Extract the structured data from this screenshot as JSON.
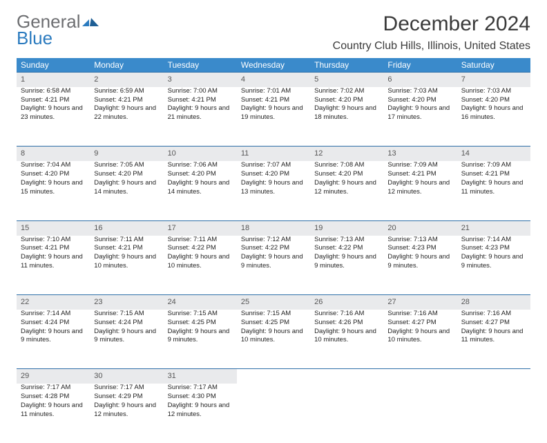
{
  "logo": {
    "word1": "General",
    "word2": "Blue"
  },
  "header": {
    "month_title": "December 2024",
    "location": "Country Club Hills, Illinois, United States"
  },
  "colors": {
    "header_bg": "#3a8acb",
    "daynum_bg": "#e9eaec",
    "row_border": "#2e6fa8",
    "logo_gray": "#6d6e71",
    "logo_blue": "#2b7bbf"
  },
  "weekdays": [
    "Sunday",
    "Monday",
    "Tuesday",
    "Wednesday",
    "Thursday",
    "Friday",
    "Saturday"
  ],
  "weeks": [
    {
      "nums": [
        "1",
        "2",
        "3",
        "4",
        "5",
        "6",
        "7"
      ],
      "cells": [
        {
          "sr": "6:58 AM",
          "ss": "4:21 PM",
          "dl": "9 hours and 23 minutes."
        },
        {
          "sr": "6:59 AM",
          "ss": "4:21 PM",
          "dl": "9 hours and 22 minutes."
        },
        {
          "sr": "7:00 AM",
          "ss": "4:21 PM",
          "dl": "9 hours and 21 minutes."
        },
        {
          "sr": "7:01 AM",
          "ss": "4:21 PM",
          "dl": "9 hours and 19 minutes."
        },
        {
          "sr": "7:02 AM",
          "ss": "4:20 PM",
          "dl": "9 hours and 18 minutes."
        },
        {
          "sr": "7:03 AM",
          "ss": "4:20 PM",
          "dl": "9 hours and 17 minutes."
        },
        {
          "sr": "7:03 AM",
          "ss": "4:20 PM",
          "dl": "9 hours and 16 minutes."
        }
      ]
    },
    {
      "nums": [
        "8",
        "9",
        "10",
        "11",
        "12",
        "13",
        "14"
      ],
      "cells": [
        {
          "sr": "7:04 AM",
          "ss": "4:20 PM",
          "dl": "9 hours and 15 minutes."
        },
        {
          "sr": "7:05 AM",
          "ss": "4:20 PM",
          "dl": "9 hours and 14 minutes."
        },
        {
          "sr": "7:06 AM",
          "ss": "4:20 PM",
          "dl": "9 hours and 14 minutes."
        },
        {
          "sr": "7:07 AM",
          "ss": "4:20 PM",
          "dl": "9 hours and 13 minutes."
        },
        {
          "sr": "7:08 AM",
          "ss": "4:20 PM",
          "dl": "9 hours and 12 minutes."
        },
        {
          "sr": "7:09 AM",
          "ss": "4:21 PM",
          "dl": "9 hours and 12 minutes."
        },
        {
          "sr": "7:09 AM",
          "ss": "4:21 PM",
          "dl": "9 hours and 11 minutes."
        }
      ]
    },
    {
      "nums": [
        "15",
        "16",
        "17",
        "18",
        "19",
        "20",
        "21"
      ],
      "cells": [
        {
          "sr": "7:10 AM",
          "ss": "4:21 PM",
          "dl": "9 hours and 11 minutes."
        },
        {
          "sr": "7:11 AM",
          "ss": "4:21 PM",
          "dl": "9 hours and 10 minutes."
        },
        {
          "sr": "7:11 AM",
          "ss": "4:22 PM",
          "dl": "9 hours and 10 minutes."
        },
        {
          "sr": "7:12 AM",
          "ss": "4:22 PM",
          "dl": "9 hours and 9 minutes."
        },
        {
          "sr": "7:13 AM",
          "ss": "4:22 PM",
          "dl": "9 hours and 9 minutes."
        },
        {
          "sr": "7:13 AM",
          "ss": "4:23 PM",
          "dl": "9 hours and 9 minutes."
        },
        {
          "sr": "7:14 AM",
          "ss": "4:23 PM",
          "dl": "9 hours and 9 minutes."
        }
      ]
    },
    {
      "nums": [
        "22",
        "23",
        "24",
        "25",
        "26",
        "27",
        "28"
      ],
      "cells": [
        {
          "sr": "7:14 AM",
          "ss": "4:24 PM",
          "dl": "9 hours and 9 minutes."
        },
        {
          "sr": "7:15 AM",
          "ss": "4:24 PM",
          "dl": "9 hours and 9 minutes."
        },
        {
          "sr": "7:15 AM",
          "ss": "4:25 PM",
          "dl": "9 hours and 9 minutes."
        },
        {
          "sr": "7:15 AM",
          "ss": "4:25 PM",
          "dl": "9 hours and 10 minutes."
        },
        {
          "sr": "7:16 AM",
          "ss": "4:26 PM",
          "dl": "9 hours and 10 minutes."
        },
        {
          "sr": "7:16 AM",
          "ss": "4:27 PM",
          "dl": "9 hours and 10 minutes."
        },
        {
          "sr": "7:16 AM",
          "ss": "4:27 PM",
          "dl": "9 hours and 11 minutes."
        }
      ]
    },
    {
      "nums": [
        "29",
        "30",
        "31",
        "",
        "",
        "",
        ""
      ],
      "cells": [
        {
          "sr": "7:17 AM",
          "ss": "4:28 PM",
          "dl": "9 hours and 11 minutes."
        },
        {
          "sr": "7:17 AM",
          "ss": "4:29 PM",
          "dl": "9 hours and 12 minutes."
        },
        {
          "sr": "7:17 AM",
          "ss": "4:30 PM",
          "dl": "9 hours and 12 minutes."
        },
        null,
        null,
        null,
        null
      ]
    }
  ],
  "labels": {
    "sunrise": "Sunrise: ",
    "sunset": "Sunset: ",
    "daylight": "Daylight: "
  }
}
